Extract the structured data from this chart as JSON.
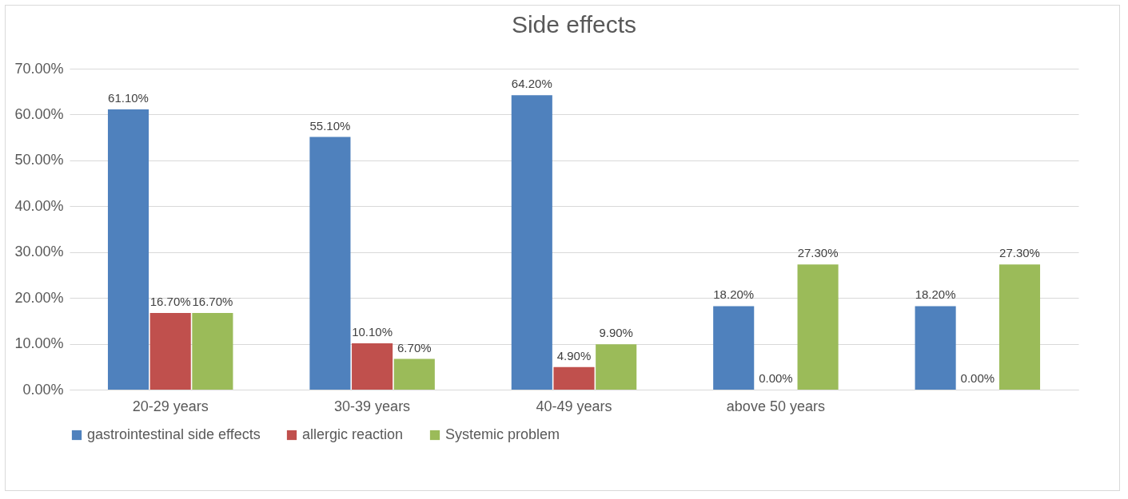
{
  "chart_data": {
    "type": "bar",
    "title": "Side effects",
    "categories": [
      "20-29 years",
      "30-39 years",
      "40-49 years",
      "above 50 years",
      null
    ],
    "series": [
      {
        "name": "gastrointestinal side effects",
        "color": "#4f81bd",
        "values": [
          61.1,
          55.1,
          64.2,
          18.2,
          18.2
        ],
        "value_labels": [
          "61.10%",
          "55.10%",
          "64.20%",
          "18.20%",
          "18.20%"
        ]
      },
      {
        "name": "allergic reaction",
        "color": "#c0504d",
        "values": [
          16.7,
          10.1,
          4.9,
          0,
          0
        ],
        "value_labels": [
          "16.70%",
          "10.10%",
          "4.90%",
          "0.00%",
          "0.00%"
        ]
      },
      {
        "name": "Systemic problem",
        "color": "#9bbb59",
        "values": [
          16.7,
          6.7,
          9.9,
          27.3,
          27.3
        ],
        "value_labels": [
          "16.70%",
          "6.70%",
          "9.90%",
          "27.30%",
          "27.30%"
        ]
      }
    ],
    "ylim": [
      0,
      70
    ],
    "yticks": [
      {
        "value": 0,
        "label": "0.00%"
      },
      {
        "value": 10,
        "label": "10.00%"
      },
      {
        "value": 20,
        "label": "20.00%"
      },
      {
        "value": 30,
        "label": "30.00%"
      },
      {
        "value": 40,
        "label": "40.00%"
      },
      {
        "value": 50,
        "label": "50.00%"
      },
      {
        "value": 60,
        "label": "60.00%"
      },
      {
        "value": 70,
        "label": "70.00%"
      }
    ],
    "grid": "y",
    "legend": "bottom"
  }
}
